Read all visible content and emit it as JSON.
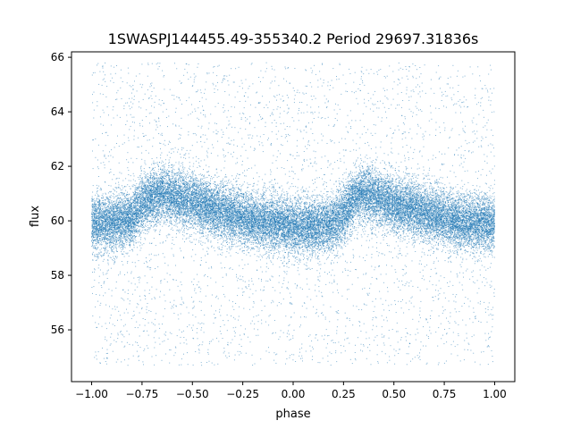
{
  "chart_data": {
    "type": "scatter",
    "title": "1SWASPJ144455.49-355340.2 Period 29697.31836s",
    "xlabel": "phase",
    "ylabel": "flux",
    "xlim": [
      -1.1,
      1.1
    ],
    "ylim": [
      54.1,
      66.2
    ],
    "x_ticks": [
      -1.0,
      -0.75,
      -0.5,
      -0.25,
      0.0,
      0.25,
      0.5,
      0.75,
      1.0
    ],
    "x_tick_labels": [
      "−1.00",
      "−0.75",
      "−0.50",
      "−0.25",
      "0.00",
      "0.25",
      "0.50",
      "0.75",
      "1.00"
    ],
    "y_ticks": [
      56,
      58,
      60,
      62,
      64,
      66
    ],
    "y_tick_labels": [
      "56",
      "58",
      "60",
      "62",
      "64",
      "66"
    ],
    "grid": false,
    "legend": "none",
    "point_color": "#1f77b4",
    "series": [
      {
        "phase_span": [
          -1.0,
          1.0
        ],
        "flux_range": [
          54.7,
          65.8
        ],
        "approx_point_count": 30000,
        "typical_scatter": 0.5,
        "light_curve": {
          "phase": [
            -1.0,
            -0.9,
            -0.8,
            -0.75,
            -0.7,
            -0.65,
            -0.6,
            -0.5,
            -0.4,
            -0.3,
            -0.2,
            -0.1,
            0.0,
            0.1,
            0.2,
            0.25,
            0.3,
            0.35,
            0.4,
            0.5,
            0.6,
            0.7,
            0.8,
            0.9,
            1.0
          ],
          "flux": [
            59.9,
            59.9,
            60.1,
            60.6,
            60.9,
            61.0,
            60.9,
            60.7,
            60.4,
            60.2,
            60.0,
            59.9,
            59.8,
            59.8,
            59.9,
            60.2,
            60.8,
            61.0,
            60.9,
            60.6,
            60.4,
            60.2,
            60.0,
            59.9,
            59.9
          ]
        }
      }
    ]
  }
}
